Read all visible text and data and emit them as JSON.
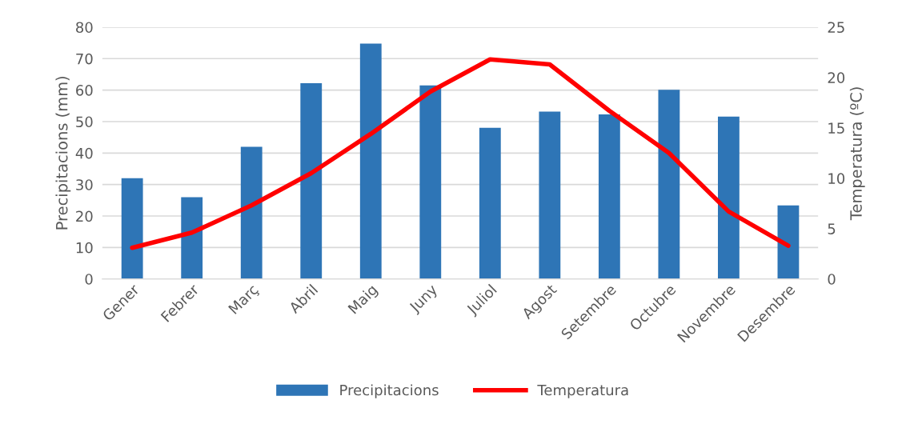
{
  "chart_data": {
    "type": "bar",
    "categories": [
      "Gener",
      "Febrer",
      "Març",
      "Abril",
      "Maig",
      "Juny",
      "Juliol",
      "Agost",
      "Setembre",
      "Octubre",
      "Novembre",
      "Desembre"
    ],
    "series": [
      {
        "name": "Precipitacions",
        "color": "#2e75b6",
        "values": [
          32,
          26,
          42,
          62.2,
          74.8,
          61.5,
          48,
          53.2,
          52.3,
          60.1,
          51.6,
          23.4
        ]
      },
      {
        "name": "Temperatura",
        "type": "line",
        "axis": "y2",
        "color": "#ff0000",
        "values": [
          3.1,
          4.6,
          7.3,
          10.5,
          14.4,
          18.6,
          21.8,
          21.3,
          16.7,
          12.5,
          6.7,
          3.3
        ]
      }
    ],
    "ylabel": "Precipitacions (mm)",
    "y2label": "Temperatura (ºC)",
    "ylim": [
      0,
      80
    ],
    "yticks": [
      0,
      10,
      20,
      30,
      40,
      50,
      60,
      70,
      80
    ],
    "y2lim": [
      0,
      25
    ],
    "y2ticks": [
      0,
      5,
      10,
      15,
      20,
      25
    ],
    "grid": "y",
    "legend": "bottom",
    "marker": "none",
    "line_style": "solid"
  }
}
